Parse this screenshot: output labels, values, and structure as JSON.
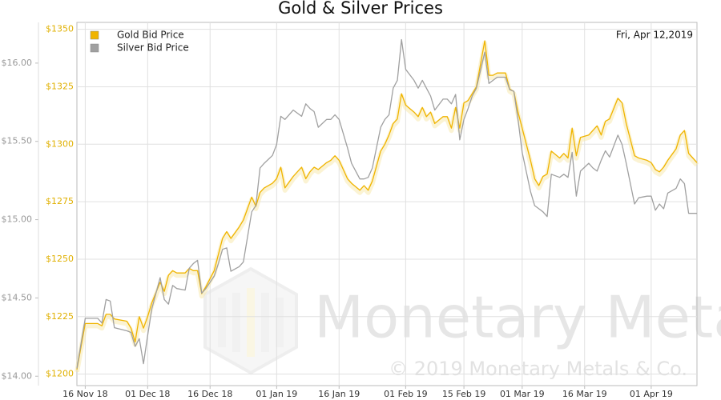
{
  "chart_data": {
    "type": "line",
    "title": "Gold & Silver Prices",
    "date_label": "Fri, Apr 12,2019",
    "watermark": "Monetary Metals",
    "copyright": "© 2019 Monetary Metals & Co.",
    "x": [
      "2018-11-14",
      "2018-11-16",
      "2018-11-19",
      "2018-11-20",
      "2018-11-21",
      "2018-11-22",
      "2018-11-23",
      "2018-11-26",
      "2018-11-27",
      "2018-11-28",
      "2018-11-29",
      "2018-11-30",
      "2018-12-01",
      "2018-12-02",
      "2018-12-04",
      "2018-12-05",
      "2018-12-06",
      "2018-12-07",
      "2018-12-08",
      "2018-12-10",
      "2018-12-11",
      "2018-12-12",
      "2018-12-13",
      "2018-12-14",
      "2018-12-15",
      "2018-12-17",
      "2018-12-18",
      "2018-12-19",
      "2018-12-20",
      "2018-12-21",
      "2018-12-23",
      "2018-12-24",
      "2018-12-26",
      "2018-12-27",
      "2018-12-28",
      "2018-12-29",
      "2018-12-31",
      "2019-01-01",
      "2019-01-02",
      "2019-01-03",
      "2019-01-05",
      "2019-01-07",
      "2019-01-08",
      "2019-01-09",
      "2019-01-10",
      "2019-01-11",
      "2019-01-13",
      "2019-01-14",
      "2019-01-15",
      "2019-01-16",
      "2019-01-18",
      "2019-01-19",
      "2019-01-21",
      "2019-01-22",
      "2019-01-23",
      "2019-01-24",
      "2019-01-26",
      "2019-01-27",
      "2019-01-28",
      "2019-01-29",
      "2019-01-30",
      "2019-01-31",
      "2019-02-01",
      "2019-02-03",
      "2019-02-04",
      "2019-02-05",
      "2019-02-06",
      "2019-02-07",
      "2019-02-08",
      "2019-02-10",
      "2019-02-11",
      "2019-02-12",
      "2019-02-13",
      "2019-02-14",
      "2019-02-15",
      "2019-02-16",
      "2019-02-17",
      "2019-02-18",
      "2019-02-20",
      "2019-02-21",
      "2019-02-22",
      "2019-02-23",
      "2019-02-25",
      "2019-02-26",
      "2019-02-27",
      "2019-02-28",
      "2019-03-01",
      "2019-03-03",
      "2019-03-04",
      "2019-03-05",
      "2019-03-06",
      "2019-03-07",
      "2019-03-08",
      "2019-03-10",
      "2019-03-11",
      "2019-03-12",
      "2019-03-13",
      "2019-03-14",
      "2019-03-15",
      "2019-03-17",
      "2019-03-18",
      "2019-03-19",
      "2019-03-20",
      "2019-03-21",
      "2019-03-22",
      "2019-03-24",
      "2019-03-25",
      "2019-03-26",
      "2019-03-28",
      "2019-03-29",
      "2019-03-31",
      "2019-04-01",
      "2019-04-02",
      "2019-04-03",
      "2019-04-04",
      "2019-04-05",
      "2019-04-07",
      "2019-04-08",
      "2019-04-09",
      "2019-04-10",
      "2019-04-11",
      "2019-04-12"
    ],
    "series": [
      {
        "name": "Gold Bid Price",
        "color": "#f0b400",
        "axis": "y",
        "values": [
          1202,
          1222,
          1222,
          1221,
          1226,
          1226,
          1224,
          1223,
          1220,
          1214,
          1225,
          1220,
          1225,
          1231,
          1240,
          1236,
          1243,
          1245,
          1244,
          1244,
          1246,
          1245,
          1245,
          1235,
          1238,
          1245,
          1252,
          1259,
          1262,
          1259,
          1264,
          1267,
          1277,
          1273,
          1279,
          1281,
          1283,
          1285,
          1290,
          1281,
          1286,
          1290,
          1285,
          1288,
          1290,
          1289,
          1292,
          1293,
          1295,
          1293,
          1285,
          1283,
          1280,
          1282,
          1280,
          1284,
          1297,
          1300,
          1304,
          1309,
          1311,
          1322,
          1317,
          1314,
          1312,
          1316,
          1312,
          1314,
          1309,
          1312,
          1312,
          1307,
          1316,
          1307,
          1318,
          1319,
          1322,
          1325,
          1345,
          1330,
          1330,
          1331,
          1331,
          1324,
          1323,
          1314,
          1307,
          1293,
          1285,
          1282,
          1286,
          1287,
          1297,
          1294,
          1296,
          1294,
          1307,
          1295,
          1303,
          1304,
          1306,
          1308,
          1304,
          1310,
          1311,
          1320,
          1318,
          1309,
          1295,
          1294,
          1293,
          1292,
          1289,
          1288,
          1290,
          1293,
          1298,
          1304,
          1306,
          1296,
          1294,
          1292
        ]
      },
      {
        "name": "Silver Bid Price",
        "color": "#a0a0a0",
        "axis": "y2",
        "values": [
          14.05,
          14.37,
          14.37,
          14.34,
          14.49,
          14.48,
          14.31,
          14.29,
          14.28,
          14.19,
          14.24,
          14.08,
          14.26,
          14.43,
          14.63,
          14.49,
          14.46,
          14.58,
          14.56,
          14.55,
          14.69,
          14.72,
          14.74,
          14.53,
          14.56,
          14.64,
          14.72,
          14.81,
          14.82,
          14.67,
          14.7,
          14.73,
          15.05,
          15.09,
          15.33,
          15.36,
          15.41,
          15.48,
          15.66,
          15.64,
          15.7,
          15.66,
          15.74,
          15.71,
          15.69,
          15.59,
          15.64,
          15.64,
          15.67,
          15.64,
          15.46,
          15.36,
          15.26,
          15.26,
          15.27,
          15.33,
          15.59,
          15.64,
          15.67,
          15.84,
          15.89,
          16.15,
          15.96,
          15.89,
          15.84,
          15.89,
          15.84,
          15.79,
          15.7,
          15.77,
          15.77,
          15.74,
          15.8,
          15.51,
          15.64,
          15.71,
          15.79,
          15.84,
          16.07,
          15.87,
          15.89,
          15.91,
          15.91,
          15.83,
          15.82,
          15.64,
          15.43,
          15.18,
          15.09,
          15.07,
          15.05,
          15.02,
          15.29,
          15.27,
          15.29,
          15.27,
          15.43,
          15.15,
          15.31,
          15.36,
          15.33,
          15.31,
          15.38,
          15.44,
          15.4,
          15.54,
          15.48,
          15.36,
          15.1,
          15.14,
          15.15,
          15.15,
          15.06,
          15.1,
          15.07,
          15.17,
          15.2,
          15.26,
          15.23,
          15.04,
          15.04,
          15.04
        ]
      }
    ],
    "xlim": [
      "2018-11-14",
      "2019-04-12"
    ],
    "xticks": [
      {
        "value": "2018-11-16",
        "label": "16 Nov 18"
      },
      {
        "value": "2018-12-01",
        "label": "01 Dec 18"
      },
      {
        "value": "2018-12-16",
        "label": "16 Dec 18"
      },
      {
        "value": "2019-01-01",
        "label": "01 Jan 19"
      },
      {
        "value": "2019-01-16",
        "label": "16 Jan 19"
      },
      {
        "value": "2019-02-01",
        "label": "01 Feb 19"
      },
      {
        "value": "2019-02-15",
        "label": "15 Feb 19"
      },
      {
        "value": "2019-03-01",
        "label": "01 Mar 19"
      },
      {
        "value": "2019-03-16",
        "label": "16 Mar 19"
      },
      {
        "value": "2019-04-01",
        "label": "01 Apr 19"
      }
    ],
    "ylim": [
      1195,
      1353
    ],
    "yticks": [
      {
        "value": 1200,
        "label": "$1200"
      },
      {
        "value": 1225,
        "label": "$1225"
      },
      {
        "value": 1250,
        "label": "$1250"
      },
      {
        "value": 1275,
        "label": "$1275"
      },
      {
        "value": 1300,
        "label": "$1300"
      },
      {
        "value": 1325,
        "label": "$1325"
      },
      {
        "value": 1350,
        "label": "$1350"
      }
    ],
    "y2lim": [
      13.94,
      16.26
    ],
    "y2ticks": [
      {
        "value": 14,
        "label": "$14.00"
      },
      {
        "value": 14.5,
        "label": "$14.50"
      },
      {
        "value": 15,
        "label": "$15.00"
      },
      {
        "value": 15.5,
        "label": "$15.50"
      },
      {
        "value": 16,
        "label": "$16.00"
      }
    ],
    "grid": true,
    "legend": "upper left"
  }
}
